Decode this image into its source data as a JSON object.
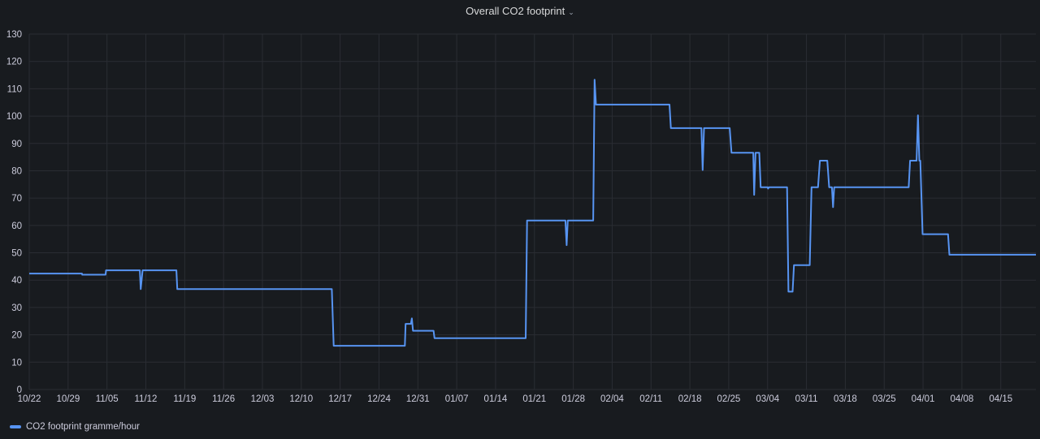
{
  "chart_data": {
    "type": "line",
    "title": "Overall CO2 footprint",
    "xlabel": "",
    "ylabel": "",
    "ylim": [
      0,
      130
    ],
    "yticks": [
      0,
      10,
      20,
      30,
      40,
      50,
      60,
      70,
      80,
      90,
      100,
      110,
      120,
      130
    ],
    "xticks": [
      "10/22",
      "10/29",
      "11/05",
      "11/12",
      "11/19",
      "11/26",
      "12/03",
      "12/10",
      "12/17",
      "12/24",
      "12/31",
      "01/07",
      "01/14",
      "01/21",
      "01/28",
      "02/04",
      "02/11",
      "02/18",
      "02/25",
      "03/04",
      "03/11",
      "03/18",
      "03/25",
      "04/01",
      "04/08",
      "04/15"
    ],
    "xlim": [
      "10/22 00:00",
      "04/21 08:00"
    ],
    "grid": true,
    "legend_placement": "bottom-left",
    "line_color": "#5794f2",
    "series": [
      {
        "name": "CO2 footprint gramme/hour",
        "points": [
          [
            "10/22 00:00",
            42.4
          ],
          [
            "10/31 12:00",
            42.4
          ],
          [
            "10/31 13:00",
            42.0
          ],
          [
            "11/04 18:00",
            42.0
          ],
          [
            "11/04 20:00",
            43.6
          ],
          [
            "11/10 22:00",
            43.6
          ],
          [
            "11/11 02:00",
            36.7
          ],
          [
            "11/11 10:00",
            43.6
          ],
          [
            "11/17 12:00",
            43.6
          ],
          [
            "11/17 16:00",
            36.7
          ],
          [
            "12/15 12:00",
            36.7
          ],
          [
            "12/15 20:00",
            16.0
          ],
          [
            "12/28 16:00",
            16.0
          ],
          [
            "12/28 19:00",
            24.0
          ],
          [
            "12/29 18:00",
            24.0
          ],
          [
            "12/29 22:00",
            26.0
          ],
          [
            "12/30 03:00",
            21.5
          ],
          [
            "01/02 20:00",
            21.5
          ],
          [
            "01/03 00:00",
            18.8
          ],
          [
            "01/19 10:00",
            18.8
          ],
          [
            "01/19 16:00",
            61.8
          ],
          [
            "01/26 14:00",
            61.8
          ],
          [
            "01/26 19:00",
            52.8
          ],
          [
            "01/27 00:00",
            61.8
          ],
          [
            "01/31 14:00",
            61.8
          ],
          [
            "01/31 20:00",
            113.3
          ],
          [
            "02/01 02:00",
            104.2
          ],
          [
            "02/14 08:00",
            104.2
          ],
          [
            "02/14 14:00",
            95.6
          ],
          [
            "02/20 02:00",
            95.6
          ],
          [
            "02/20 07:00",
            80.3
          ],
          [
            "02/20 13:00",
            95.6
          ],
          [
            "02/25 04:00",
            95.6
          ],
          [
            "02/25 12:00",
            86.6
          ],
          [
            "03/01 10:00",
            86.6
          ],
          [
            "03/01 14:00",
            71.2
          ],
          [
            "03/01 20:00",
            86.6
          ],
          [
            "03/02 12:00",
            86.6
          ],
          [
            "03/02 18:00",
            74.0
          ],
          [
            "03/04 00:00",
            74.0
          ],
          [
            "03/04 02:00",
            73.5
          ],
          [
            "03/04 06:00",
            74.0
          ],
          [
            "03/07 12:00",
            74.0
          ],
          [
            "03/07 18:00",
            35.8
          ],
          [
            "03/08 12:00",
            35.8
          ],
          [
            "03/08 18:00",
            45.5
          ],
          [
            "03/11 14:00",
            45.5
          ],
          [
            "03/11 22:00",
            74.0
          ],
          [
            "03/13 02:00",
            74.0
          ],
          [
            "03/13 10:00",
            83.7
          ],
          [
            "03/14 18:00",
            83.7
          ],
          [
            "03/15 02:00",
            74.0
          ],
          [
            "03/15 14:00",
            74.0
          ],
          [
            "03/15 19:00",
            66.7
          ],
          [
            "03/16 00:00",
            74.0
          ],
          [
            "03/29 10:00",
            74.0
          ],
          [
            "03/29 16:00",
            83.7
          ],
          [
            "03/30 20:00",
            83.7
          ],
          [
            "03/31 02:00",
            100.3
          ],
          [
            "03/31 08:00",
            83.7
          ],
          [
            "03/31 12:00",
            83.7
          ],
          [
            "03/31 22:00",
            56.8
          ],
          [
            "04/05 12:00",
            56.8
          ],
          [
            "04/05 18:00",
            49.3
          ],
          [
            "04/21 08:00",
            49.3
          ]
        ]
      }
    ]
  }
}
